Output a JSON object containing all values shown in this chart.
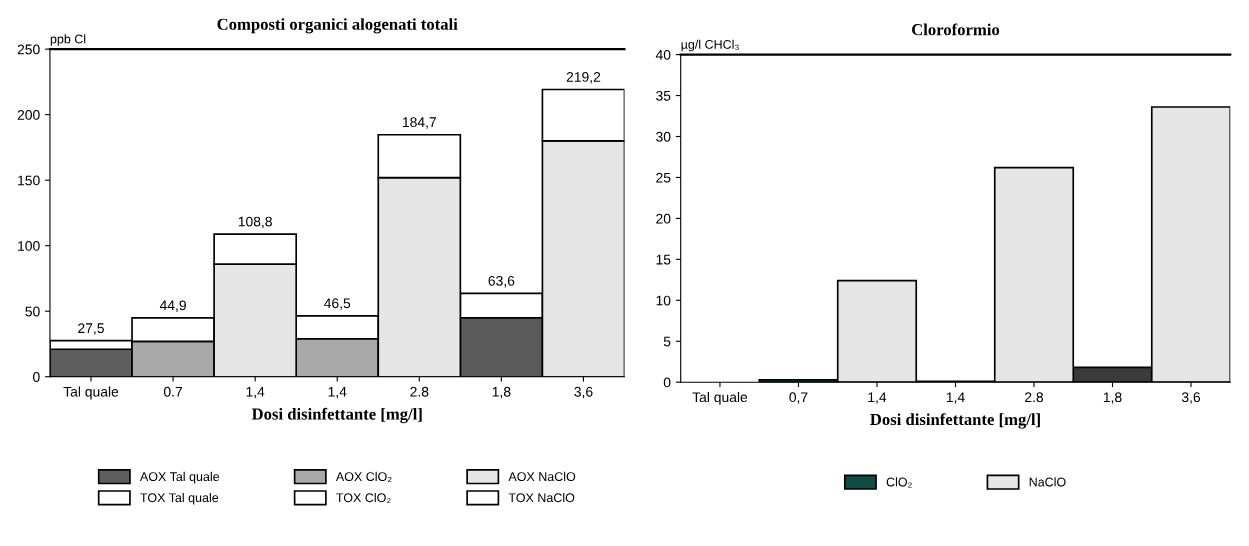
{
  "chart_data": [
    {
      "type": "bar",
      "title": "Composti organici alogenati totali",
      "xlabel": "Dosi disinfettante [mg/l]",
      "ylabel": "ppb Cl",
      "categories": [
        "Tal quale",
        "0.7",
        "1,4",
        "1,4",
        "2.8",
        "1,8",
        "3,6"
      ],
      "stacked": true,
      "ylim": [
        0,
        250
      ],
      "yticks": [
        0,
        50,
        100,
        150,
        200,
        250
      ],
      "legend": "bottom",
      "series": [
        {
          "name": "AOX Tal quale",
          "color": "#5e5e5e",
          "values": [
            21,
            null,
            null,
            null,
            null,
            null,
            null
          ]
        },
        {
          "name": "TOX Tal quale",
          "color": "#ffffff",
          "values": [
            6.5,
            null,
            null,
            null,
            null,
            null,
            null
          ]
        },
        {
          "name": "AOX ClO₂",
          "color": "#a9a9a9",
          "colors": [
            null,
            "#a9a9a9",
            null,
            "#a9a9a9",
            null,
            "#5a5a5a",
            null
          ],
          "values": [
            null,
            27,
            null,
            29,
            null,
            45,
            null
          ]
        },
        {
          "name": "TOX ClO₂",
          "color": "#ffffff",
          "values": [
            null,
            17.9,
            null,
            17.5,
            null,
            18.6,
            null
          ]
        },
        {
          "name": "AOX NaClO",
          "color": "#e6e6e6",
          "values": [
            null,
            null,
            86,
            null,
            152,
            null,
            180
          ]
        },
        {
          "name": "TOX NaClO",
          "color": "#ffffff",
          "values": [
            null,
            null,
            22.8,
            null,
            32.7,
            null,
            39.2
          ]
        }
      ],
      "totals": [
        "27,5",
        "44,9",
        "108,8",
        "46,5",
        "184,7",
        "63,6",
        "219,2"
      ]
    },
    {
      "type": "bar",
      "title": "Cloroformio",
      "xlabel": "Dosi disinfettante [mg/l]",
      "ylabel": "µg/l CHCl₃",
      "categories": [
        "Tal quale",
        "0,7",
        "1,4",
        "1,4",
        "2.8",
        "1,8",
        "3,6"
      ],
      "stacked": true,
      "ylim": [
        0,
        40
      ],
      "yticks": [
        0,
        5,
        10,
        15,
        20,
        25,
        30,
        35,
        40
      ],
      "legend": "bottom",
      "series": [
        {
          "name": "ClO₂",
          "color": "#0f4a44",
          "colors": [
            null,
            "#0f4a44",
            null,
            "#0f4a44",
            null,
            "#3a3a3a",
            null
          ],
          "values": [
            null,
            0.3,
            null,
            0.1,
            null,
            1.8,
            null
          ]
        },
        {
          "name": "NaClO",
          "color": "#e6e6e6",
          "values": [
            null,
            null,
            12.4,
            null,
            26.2,
            null,
            33.6
          ]
        }
      ]
    }
  ]
}
